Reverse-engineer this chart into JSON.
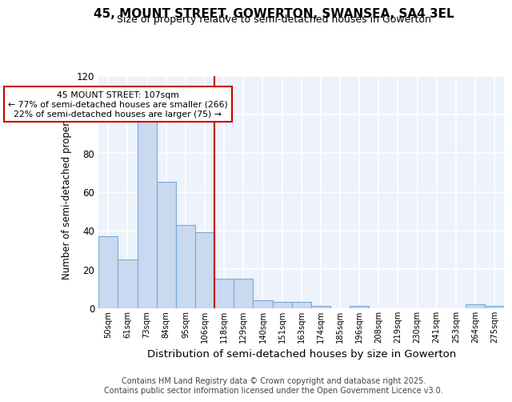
{
  "title1": "45, MOUNT STREET, GOWERTON, SWANSEA, SA4 3EL",
  "title2": "Size of property relative to semi-detached houses in Gowerton",
  "xlabel": "Distribution of semi-detached houses by size in Gowerton",
  "ylabel": "Number of semi-detached properties",
  "bin_labels": [
    "50sqm",
    "61sqm",
    "73sqm",
    "84sqm",
    "95sqm",
    "106sqm",
    "118sqm",
    "129sqm",
    "140sqm",
    "151sqm",
    "163sqm",
    "174sqm",
    "185sqm",
    "196sqm",
    "208sqm",
    "219sqm",
    "230sqm",
    "241sqm",
    "253sqm",
    "264sqm",
    "275sqm"
  ],
  "bar_values": [
    37,
    25,
    97,
    65,
    43,
    39,
    15,
    15,
    4,
    3,
    3,
    1,
    0,
    1,
    0,
    0,
    0,
    0,
    0,
    2,
    1
  ],
  "bar_color": "#c8d9f0",
  "bar_edge_color": "#7aaad4",
  "vline_x_index": 5.5,
  "annotation_line1": "45 MOUNT STREET: 107sqm",
  "annotation_line2": "← 77% of semi-detached houses are smaller (266)",
  "annotation_line3": "22% of semi-detached houses are larger (75) →",
  "annotation_box_color": "#ffffff",
  "annotation_box_edge_color": "#cc0000",
  "vline_color": "#cc0000",
  "ylim": [
    0,
    120
  ],
  "yticks": [
    0,
    20,
    40,
    60,
    80,
    100,
    120
  ],
  "background_color": "#edf2fb",
  "footer_text": "Contains HM Land Registry data © Crown copyright and database right 2025.\nContains public sector information licensed under the Open Government Licence v3.0.",
  "title1_fontsize": 11,
  "title2_fontsize": 9,
  "xlabel_fontsize": 9.5,
  "ylabel_fontsize": 8.5,
  "footer_fontsize": 7
}
